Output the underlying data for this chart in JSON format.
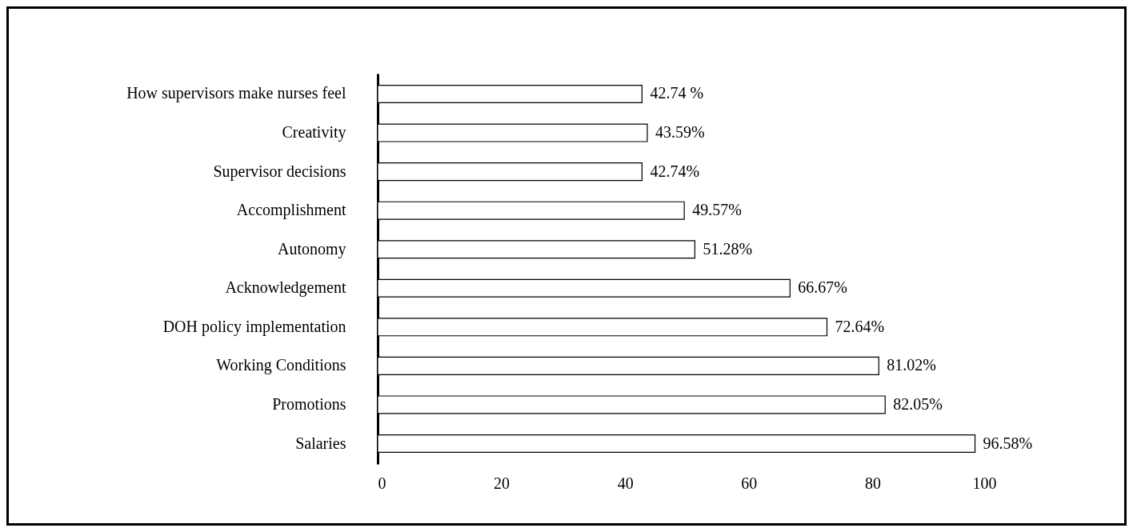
{
  "chart_data": {
    "type": "bar",
    "orientation": "horizontal",
    "categories": [
      "How supervisors make nurses feel",
      "Creativity",
      "Supervisor decisions",
      "Accomplishment",
      "Autonomy",
      "Acknowledgement",
      "DOH policy implementation",
      "Working Conditions",
      "Promotions",
      "Salaries"
    ],
    "values": [
      42.74,
      43.59,
      42.74,
      49.57,
      51.28,
      66.67,
      72.64,
      81.02,
      82.05,
      96.58
    ],
    "value_labels": [
      "42.74 %",
      "43.59%",
      "42.74%",
      "49.57%",
      "51.28%",
      "66.67%",
      "72.64%",
      "81.02%",
      "82.05%",
      "96.58%"
    ],
    "color": "#ffffff",
    "xlim": [
      0,
      100
    ],
    "xticks": [
      0,
      20,
      40,
      60,
      80,
      100
    ],
    "grid": false
  }
}
